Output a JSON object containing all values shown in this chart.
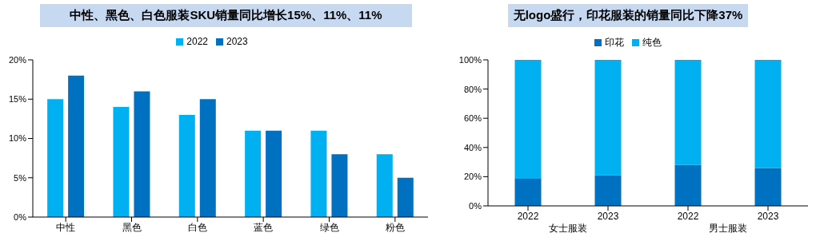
{
  "chart_data": [
    {
      "type": "bar",
      "title": "中性、黑色、白色服装SKU销量同比增长15%、11%、11%",
      "categories": [
        "中性",
        "黑色",
        "白色",
        "蓝色",
        "绿色",
        "粉色"
      ],
      "series": [
        {
          "name": "2022",
          "color": "#00b0f0",
          "values": [
            15,
            14,
            13,
            11,
            11,
            8
          ]
        },
        {
          "name": "2023",
          "color": "#0070c0",
          "values": [
            18,
            16,
            15,
            11,
            8,
            5
          ]
        }
      ],
      "ylim": [
        0,
        20
      ],
      "yticks": [
        {
          "value": 0,
          "label": "0%"
        },
        {
          "value": 5,
          "label": "5%"
        },
        {
          "value": 10,
          "label": "10%"
        },
        {
          "value": 15,
          "label": "15%"
        },
        {
          "value": 20,
          "label": "20%"
        }
      ],
      "grid": false,
      "legend": "top"
    },
    {
      "type": "bar",
      "title": "无logo盛行，印花服装的销量同比下降37%",
      "categories": [
        "2022",
        "2023",
        "2022",
        "2023"
      ],
      "stacked": true,
      "series": [
        {
          "name": "印花",
          "color": "#0070c0",
          "values": [
            19,
            21,
            28,
            26
          ]
        },
        {
          "name": "纯色",
          "color": "#00b0f0",
          "values": [
            81,
            79,
            72,
            74
          ]
        }
      ],
      "ylim": [
        0,
        100
      ],
      "yticks": [
        {
          "value": 0,
          "label": "0%"
        },
        {
          "value": 20,
          "label": "20%"
        },
        {
          "value": 40,
          "label": "40%"
        },
        {
          "value": 60,
          "label": "60%"
        },
        {
          "value": 80,
          "label": "80%"
        },
        {
          "value": 100,
          "label": "100%"
        }
      ],
      "grid": false,
      "legend": "top",
      "annotations": [
        "女士服装",
        "男士服装"
      ]
    }
  ]
}
